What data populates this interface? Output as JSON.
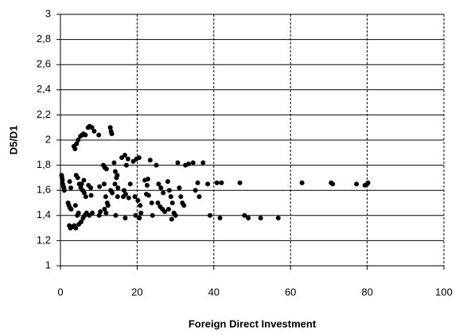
{
  "chart_data": {
    "type": "scatter",
    "x_label": "Foreign Direct Investment",
    "y_label": "D5/D1",
    "color": "#000000",
    "grid": true,
    "xlim": [
      0,
      100
    ],
    "xticks": [
      0,
      20,
      40,
      60,
      80,
      100
    ],
    "ylim": [
      1,
      3
    ],
    "yticks": [
      1,
      {
        "value": 1.2,
        "label": "1,2"
      },
      {
        "value": 1.4,
        "label": "1,4"
      },
      {
        "value": 1.6,
        "label": "1,6"
      },
      {
        "value": 1.8,
        "label": "1,8"
      },
      2,
      {
        "value": 2.2,
        "label": "2,2"
      },
      {
        "value": 2.4,
        "label": "2,4"
      },
      {
        "value": 2.6,
        "label": "2,6"
      },
      {
        "value": 2.8,
        "label": "2,8"
      },
      3
    ],
    "x": [
      0.3,
      0.4,
      0.5,
      0.6,
      0.8,
      0.9,
      1.0,
      2.0,
      2.2,
      2.5,
      2.8,
      2.3,
      2.6,
      3.0,
      2.4,
      2.7,
      3.5,
      3.8,
      4.2,
      4.6,
      3.6,
      4.0,
      4.8,
      3.9,
      4.1,
      4.5,
      4.9,
      4.4,
      4.7,
      5.2,
      5.6,
      6.0,
      6.5,
      5.3,
      5.8,
      6.2,
      6.6,
      5.4,
      5.9,
      6.3,
      6.8,
      5.5,
      6.1,
      7.2,
      7.6,
      8.2,
      8.8,
      7.3,
      7.9,
      7.5,
      8.3,
      8.0,
      10.0,
      10.2,
      10.1,
      10.4,
      11.2,
      11.6,
      12.0,
      11.4,
      11.8,
      12.2,
      11.5,
      12.4,
      11.9,
      13.0,
      13.2,
      13.4,
      13.1,
      13.5,
      14.0,
      14.3,
      14.6,
      14.2,
      14.8,
      14.4,
      15.0,
      14.9,
      16.0,
      16.8,
      17.6,
      17.2,
      16.4,
      17.0,
      17.8,
      16.6,
      16.9,
      18.2,
      19.0,
      19.8,
      20.5,
      19.4,
      20.2,
      19.6,
      20.6,
      20.8,
      21.0,
      22.0,
      22.8,
      23.4,
      22.4,
      23.0,
      23.8,
      22.6,
      24.0,
      25.0,
      25.6,
      26.2,
      26.8,
      25.4,
      26.0,
      26.6,
      27.2,
      28.0,
      28.4,
      28.8,
      29.2,
      28.2,
      29.6,
      29.0,
      30.0,
      30.6,
      31.0,
      31.4,
      31.8,
      32.2,
      32.6,
      33.4,
      34.6,
      35.2,
      35.8,
      36.2,
      37.2,
      38.4,
      39.0,
      40.8,
      41.6,
      42.0,
      46.8,
      48.0,
      49.0,
      52.2,
      56.8,
      63.0,
      70.6,
      71.0,
      77.2,
      79.4,
      80.0,
      80.2
    ],
    "y": [
      1.72,
      1.7,
      1.68,
      1.65,
      1.63,
      1.62,
      1.6,
      1.5,
      1.48,
      1.46,
      1.45,
      1.32,
      1.3,
      1.31,
      1.67,
      1.62,
      1.95,
      1.93,
      1.97,
      2.0,
      1.32,
      1.3,
      1.33,
      1.48,
      1.72,
      1.7,
      1.65,
      1.4,
      1.42,
      2.03,
      2.04,
      2.05,
      2.04,
      1.62,
      1.6,
      1.58,
      1.55,
      1.35,
      1.38,
      1.4,
      1.42,
      1.65,
      1.68,
      2.1,
      2.11,
      2.1,
      2.07,
      1.64,
      1.62,
      1.4,
      1.42,
      1.56,
      2.04,
      1.63,
      1.4,
      1.43,
      1.8,
      1.78,
      1.77,
      1.65,
      1.55,
      1.5,
      1.45,
      1.48,
      1.42,
      2.1,
      2.07,
      2.05,
      1.6,
      1.58,
      1.82,
      1.75,
      1.7,
      1.65,
      1.72,
      1.4,
      1.62,
      1.55,
      1.86,
      1.88,
      1.85,
      1.8,
      1.55,
      1.57,
      1.54,
      1.6,
      1.38,
      1.65,
      1.83,
      1.85,
      1.86,
      1.55,
      1.52,
      1.4,
      1.38,
      1.48,
      1.42,
      1.68,
      1.69,
      1.84,
      1.57,
      1.56,
      1.5,
      1.64,
      1.4,
      1.8,
      1.65,
      1.62,
      1.58,
      1.5,
      1.47,
      1.45,
      1.43,
      1.67,
      1.6,
      1.55,
      1.5,
      1.45,
      1.42,
      1.37,
      1.4,
      1.82,
      1.62,
      1.55,
      1.5,
      1.48,
      1.8,
      1.81,
      1.82,
      1.6,
      1.66,
      1.55,
      1.82,
      1.65,
      1.4,
      1.66,
      1.38,
      1.66,
      1.66,
      1.4,
      1.38,
      1.38,
      1.38,
      1.66,
      1.66,
      1.65,
      1.65,
      1.64,
      1.65,
      1.66
    ]
  }
}
